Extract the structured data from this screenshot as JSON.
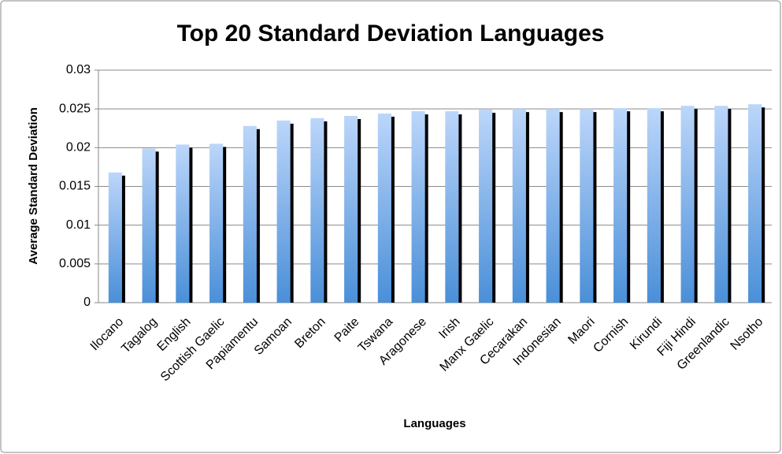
{
  "chart_data": {
    "type": "bar",
    "title": "Top 20 Standard Deviation Languages",
    "x_label": "Languages",
    "y_label": "Average Standard Deviation",
    "categories": [
      "Ilocano",
      "Tagalog",
      "English",
      "Scottish Gaelic",
      "Papiamentu",
      "Samoan",
      "Breton",
      "Paite",
      "Tswana",
      "Aragonese",
      "Irish",
      "Manx Gaelic",
      "Cecarakan",
      "Indonesian",
      "Maori",
      "Cornish",
      "Kirundi",
      "Fiji Hindi",
      "Greenlandic",
      "Nsotho"
    ],
    "values": [
      0.0168,
      0.0199,
      0.0204,
      0.0205,
      0.0228,
      0.0235,
      0.0238,
      0.0241,
      0.0244,
      0.0247,
      0.0247,
      0.0249,
      0.025,
      0.025,
      0.025,
      0.0251,
      0.0251,
      0.0254,
      0.0254,
      0.0256
    ],
    "color": "#4a8fd8",
    "ylim": [
      0,
      0.03
    ],
    "yticks": [
      0,
      0.005,
      0.01,
      0.015,
      0.02,
      0.025,
      0.03
    ],
    "grid": true
  }
}
